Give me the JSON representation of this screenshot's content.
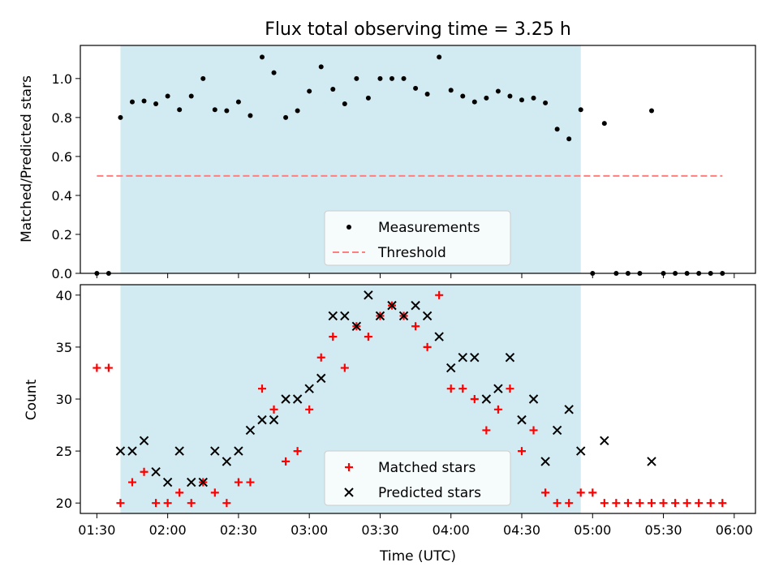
{
  "figure": {
    "title": "Flux total observing time = 3.25 h",
    "xlabel": "Time (UTC)",
    "x_ticks": [
      "01:30",
      "02:00",
      "02:30",
      "03:00",
      "03:30",
      "04:00",
      "04:30",
      "05:00",
      "05:30",
      "06:00"
    ],
    "x_range": [
      "01:23",
      "06:09"
    ],
    "shaded_span": [
      "01:40",
      "04:55"
    ],
    "colors": {
      "shade": "#add8e6",
      "measurement": "#000000",
      "threshold": "#ff7f7f",
      "matched": "#ff0000",
      "predicted": "#000000"
    }
  },
  "chart_data": [
    {
      "type": "scatter",
      "ylabel": "Matched/Predicted stars",
      "ylim": [
        0,
        1.17
      ],
      "y_ticks": [
        "0.0",
        "0.2",
        "0.4",
        "0.6",
        "0.8",
        "1.0"
      ],
      "threshold": {
        "name": "Threshold",
        "value": 0.5,
        "x_range": [
          "01:30",
          "05:55"
        ]
      },
      "legend": {
        "placement": "lower-center",
        "entries": [
          "Measurements",
          "Threshold"
        ]
      },
      "series": [
        {
          "name": "Measurements",
          "x": [
            "01:30",
            "01:35",
            "01:40",
            "01:45",
            "01:50",
            "01:55",
            "02:00",
            "02:05",
            "02:10",
            "02:15",
            "02:20",
            "02:25",
            "02:30",
            "02:35",
            "02:40",
            "02:45",
            "02:50",
            "02:55",
            "03:00",
            "03:05",
            "03:10",
            "03:15",
            "03:20",
            "03:25",
            "03:30",
            "03:35",
            "03:40",
            "03:45",
            "03:50",
            "03:55",
            "04:00",
            "04:05",
            "04:10",
            "04:15",
            "04:20",
            "04:25",
            "04:30",
            "04:35",
            "04:40",
            "04:45",
            "04:50",
            "04:55",
            "05:00",
            "05:05",
            "05:10",
            "05:15",
            "05:20",
            "05:25",
            "05:30",
            "05:35",
            "05:40",
            "05:45",
            "05:50",
            "05:55"
          ],
          "y": [
            0,
            0,
            0.8,
            0.88,
            0.885,
            0.87,
            0.91,
            0.84,
            0.91,
            1.0,
            0.84,
            0.835,
            0.88,
            0.81,
            1.11,
            1.03,
            0.8,
            0.835,
            0.935,
            1.06,
            0.945,
            0.87,
            1.0,
            0.9,
            1.0,
            1.0,
            1.0,
            0.95,
            0.92,
            1.11,
            0.94,
            0.91,
            0.88,
            0.9,
            0.935,
            0.91,
            0.89,
            0.9,
            0.875,
            0.74,
            0.69,
            0.84,
            0,
            0.77,
            0,
            0,
            0,
            0.835,
            0,
            0,
            0,
            0,
            0,
            0
          ]
        }
      ]
    },
    {
      "type": "scatter",
      "ylabel": "Count",
      "ylim": [
        19,
        41
      ],
      "y_ticks": [
        "20",
        "25",
        "30",
        "35",
        "40"
      ],
      "legend": {
        "placement": "lower-center",
        "entries": [
          "Matched stars",
          "Predicted stars"
        ]
      },
      "series": [
        {
          "name": "Matched stars",
          "x": [
            "01:30",
            "01:35",
            "01:40",
            "01:45",
            "01:50",
            "01:55",
            "02:00",
            "02:05",
            "02:10",
            "02:15",
            "02:20",
            "02:25",
            "02:30",
            "02:35",
            "02:40",
            "02:45",
            "02:50",
            "02:55",
            "03:00",
            "03:05",
            "03:10",
            "03:15",
            "03:20",
            "03:25",
            "03:30",
            "03:35",
            "03:40",
            "03:45",
            "03:50",
            "03:55",
            "04:00",
            "04:05",
            "04:10",
            "04:15",
            "04:20",
            "04:25",
            "04:30",
            "04:35",
            "04:40",
            "04:45",
            "04:50",
            "04:55",
            "05:00",
            "05:05",
            "05:10",
            "05:15",
            "05:20",
            "05:25",
            "05:30",
            "05:35",
            "05:40",
            "05:45",
            "05:50",
            "05:55"
          ],
          "y": [
            33,
            33,
            20,
            22,
            23,
            20,
            20,
            21,
            20,
            22,
            21,
            20,
            22,
            22,
            31,
            29,
            24,
            25,
            29,
            34,
            36,
            33,
            37,
            36,
            38,
            39,
            38,
            37,
            35,
            40,
            31,
            31,
            30,
            27,
            29,
            31,
            25,
            27,
            21,
            20,
            20,
            21,
            21,
            20,
            20,
            20,
            20,
            20,
            20,
            20,
            20,
            20,
            20,
            20
          ]
        },
        {
          "name": "Predicted stars",
          "x": [
            "01:40",
            "01:45",
            "01:50",
            "01:55",
            "02:00",
            "02:05",
            "02:10",
            "02:15",
            "02:20",
            "02:25",
            "02:30",
            "02:35",
            "02:40",
            "02:45",
            "02:50",
            "02:55",
            "03:00",
            "03:05",
            "03:10",
            "03:15",
            "03:20",
            "03:25",
            "03:30",
            "03:35",
            "03:40",
            "03:45",
            "03:50",
            "03:55",
            "04:00",
            "04:05",
            "04:10",
            "04:15",
            "04:20",
            "04:25",
            "04:30",
            "04:35",
            "04:40",
            "04:45",
            "04:50",
            "04:55",
            "05:05",
            "05:25"
          ],
          "y": [
            25,
            25,
            26,
            23,
            22,
            25,
            22,
            22,
            25,
            24,
            25,
            27,
            28,
            28,
            30,
            30,
            31,
            32,
            38,
            38,
            37,
            40,
            38,
            39,
            38,
            39,
            38,
            36,
            33,
            34,
            34,
            30,
            31,
            34,
            28,
            30,
            24,
            27,
            29,
            25,
            26,
            24
          ]
        }
      ]
    }
  ]
}
